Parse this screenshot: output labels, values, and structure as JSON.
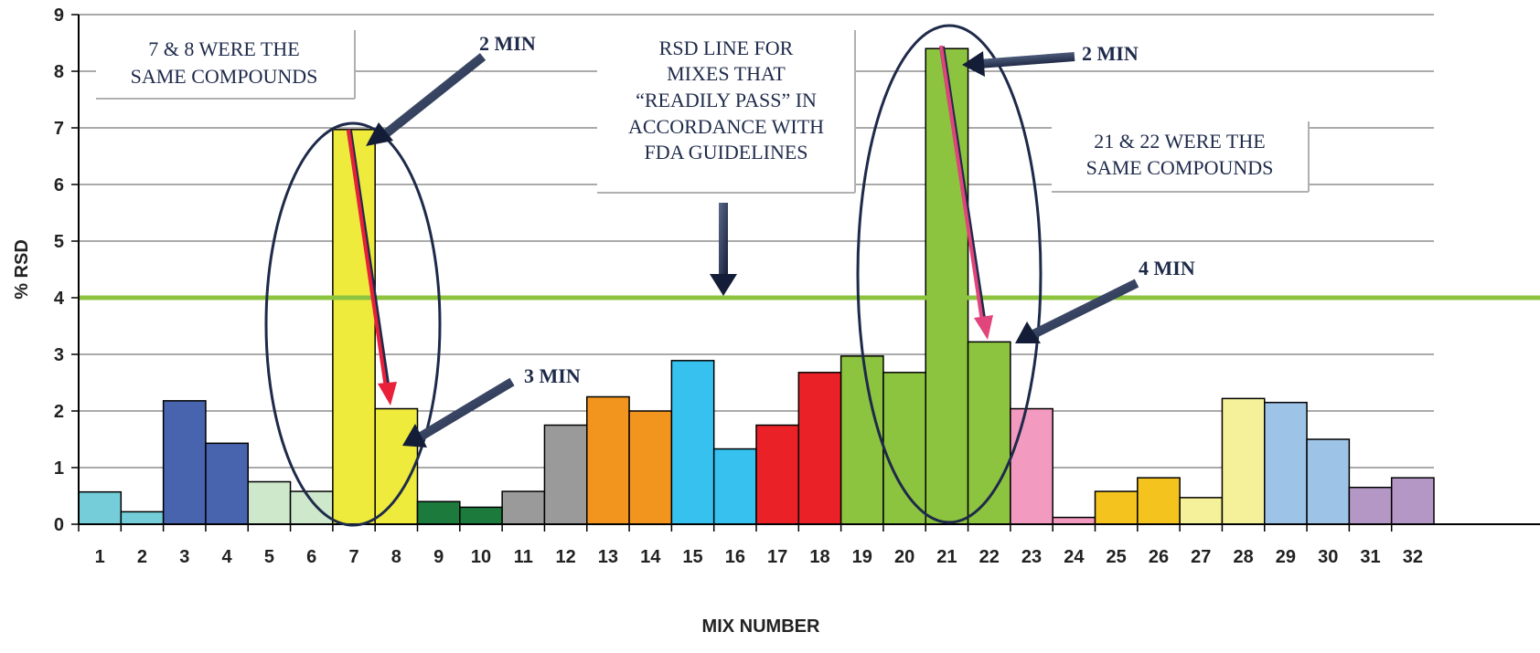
{
  "chart_data": {
    "type": "bar",
    "ylabel": "% RSD",
    "xlabel": "MIX NUMBER",
    "ylim": [
      0,
      9
    ],
    "yticks": [
      0,
      1,
      2,
      3,
      4,
      5,
      6,
      7,
      8,
      9
    ],
    "categories": [
      "1",
      "2",
      "3",
      "4",
      "5",
      "6",
      "7",
      "8",
      "9",
      "10",
      "11",
      "12",
      "13",
      "14",
      "15",
      "16",
      "17",
      "18",
      "19",
      "20",
      "21",
      "22",
      "23",
      "24",
      "25",
      "26",
      "27",
      "28",
      "29",
      "30",
      "31",
      "32"
    ],
    "values": [
      0.57,
      0.22,
      2.18,
      1.43,
      0.75,
      0.58,
      6.97,
      2.04,
      0.4,
      0.3,
      0.58,
      1.75,
      2.25,
      2.0,
      2.89,
      1.33,
      1.75,
      2.68,
      2.97,
      2.68,
      8.4,
      3.22,
      2.04,
      0.12,
      0.58,
      0.82,
      0.47,
      2.22,
      2.15,
      1.5,
      0.65,
      0.82
    ],
    "colors": [
      "#74cdd8",
      "#74cdd8",
      "#4864ae",
      "#4864ae",
      "#cde8cb",
      "#cde8cb",
      "#eeeb3c",
      "#eeeb3c",
      "#1c7a3c",
      "#1c7a3c",
      "#9a9a9a",
      "#9a9a9a",
      "#f2951f",
      "#f2951f",
      "#36c1ee",
      "#36c1ee",
      "#ea2228",
      "#ea2228",
      "#8dc43f",
      "#8dc43f",
      "#8dc43f",
      "#8dc43f",
      "#f39ac0",
      "#f39ac0",
      "#f4c31d",
      "#f4c31d",
      "#f5f09a",
      "#f5f09a",
      "#9dc3e6",
      "#9dc3e6",
      "#b597c6",
      "#b597c6"
    ],
    "reference_line": {
      "value": 4,
      "color": "#8dc43f"
    },
    "grid": true,
    "annotations": {
      "box_left_lines": [
        "7 & 8 WERE THE",
        "SAME COMPOUNDS"
      ],
      "box_center_lines": [
        "RSD LINE FOR",
        "MIXES THAT",
        "“READILY PASS” IN",
        "ACCORDANCE WITH",
        "FDA GUIDELINES"
      ],
      "box_right_lines": [
        "21 & 22 WERE THE",
        "SAME COMPOUNDS"
      ],
      "label_2min_a": "2 MIN",
      "label_3min": "3 MIN",
      "label_2min_b": "2 MIN",
      "label_4min": "4 MIN"
    },
    "accent_colors": {
      "navy": "#1e2a4a",
      "red_arrow": "#e8203a",
      "pink_arrow": "#e0457b"
    }
  }
}
